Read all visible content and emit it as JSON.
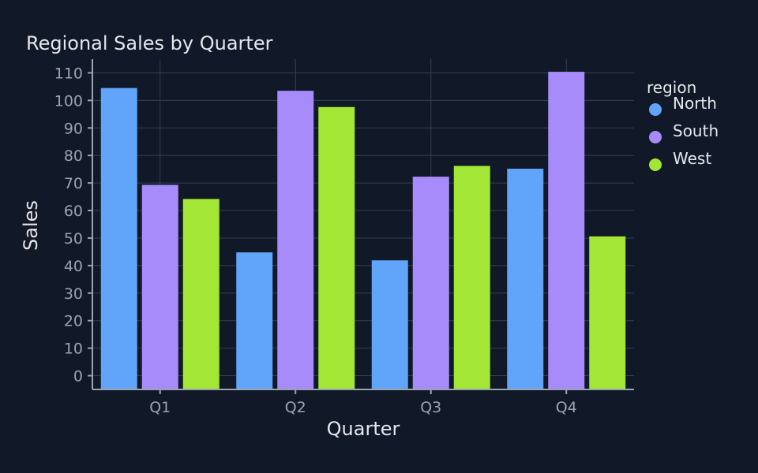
{
  "chart_data": {
    "type": "bar",
    "title": "Regional Sales by Quarter",
    "xlabel": "Quarter",
    "ylabel": "Sales",
    "categories": [
      "Q1",
      "Q2",
      "Q3",
      "Q4"
    ],
    "ylim": [
      -5,
      115
    ],
    "yticks": [
      0,
      10,
      20,
      30,
      40,
      50,
      60,
      70,
      80,
      90,
      100,
      110
    ],
    "grid": true,
    "legend": {
      "title": "region",
      "position": "right"
    },
    "series": [
      {
        "name": "North",
        "color": "#60a5fa",
        "values": [
          104.5,
          44.8,
          41.9,
          75.2
        ]
      },
      {
        "name": "South",
        "color": "#a78bfa",
        "values": [
          69.3,
          103.5,
          72.3,
          110.4
        ]
      },
      {
        "name": "West",
        "color": "#a3e635",
        "values": [
          64.2,
          97.6,
          76.2,
          50.6
        ]
      }
    ]
  }
}
